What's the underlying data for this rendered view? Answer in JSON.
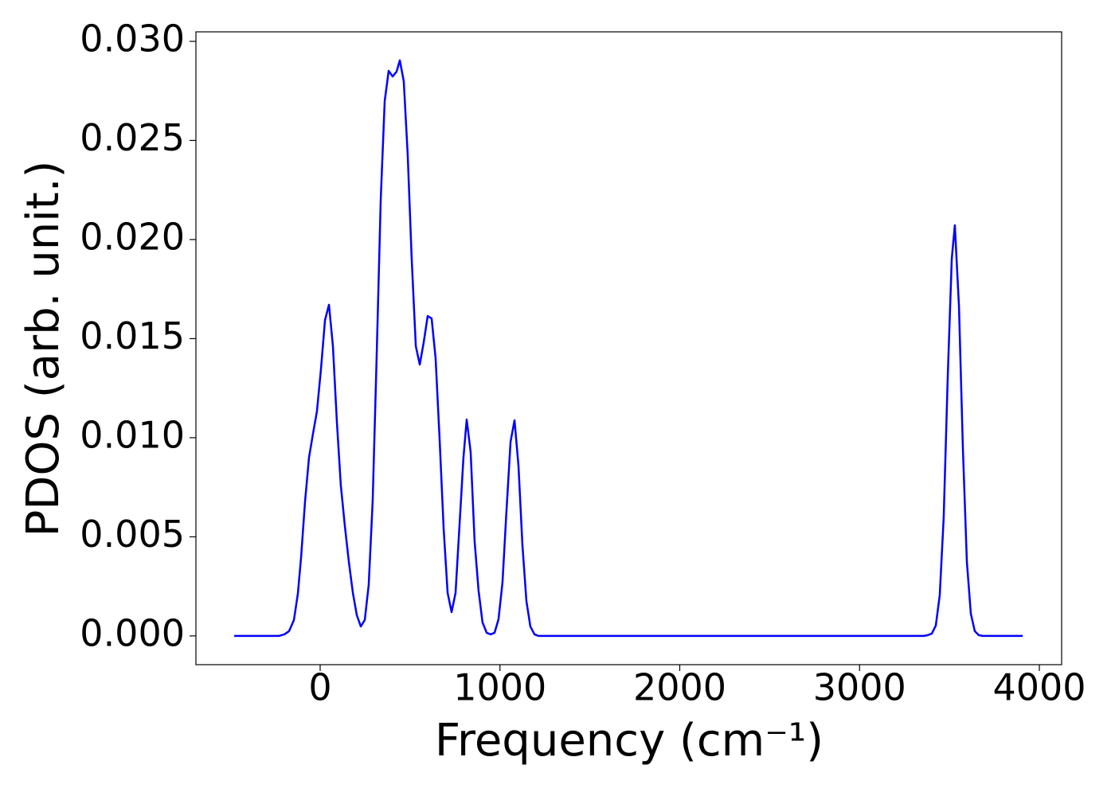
{
  "chart_data": {
    "type": "line",
    "x_label": "Frequency (cm⁻¹)",
    "y_label": "PDOS (arb. unit.)",
    "x": [
      -478,
      -230,
      -199,
      -173,
      -146,
      -124,
      -106,
      -84,
      -62,
      -40,
      -18,
      4,
      27,
      49,
      71,
      93,
      115,
      137,
      159,
      182,
      204,
      226,
      248,
      270,
      292,
      314,
      337,
      359,
      381,
      403,
      425,
      443,
      465,
      487,
      509,
      532,
      554,
      576,
      598,
      620,
      642,
      664,
      687,
      709,
      731,
      753,
      775,
      797,
      815,
      837,
      859,
      881,
      903,
      926,
      948,
      970,
      992,
      1014,
      1036,
      1059,
      1081,
      1103,
      1125,
      1147,
      1169,
      1192,
      1214,
      3358,
      3380,
      3402,
      3424,
      3446,
      3468,
      3491,
      3513,
      3530,
      3553,
      3575,
      3597,
      3619,
      3641,
      3663,
      3685,
      3907
    ],
    "series": [
      {
        "name": "PDOS",
        "color": "#0000ff",
        "values": [
          0,
          0,
          8e-05,
          0.00024,
          0.0008,
          0.00213,
          0.00398,
          0.00679,
          0.009,
          0.0102,
          0.01133,
          0.01341,
          0.01594,
          0.01671,
          0.01462,
          0.0108,
          0.00759,
          0.00558,
          0.00378,
          0.00217,
          0.00104,
          0.00048,
          0.0008,
          0.00257,
          0.00679,
          0.01402,
          0.02205,
          0.02699,
          0.02851,
          0.02823,
          0.02847,
          0.02904,
          0.02799,
          0.02426,
          0.01904,
          0.01462,
          0.01369,
          0.01482,
          0.01614,
          0.01602,
          0.01402,
          0.01,
          0.00538,
          0.00217,
          0.0012,
          0.00217,
          0.00558,
          0.009,
          0.01092,
          0.00928,
          0.00478,
          0.00229,
          0.00068,
          0.00016,
          8e-05,
          0.00016,
          0.00084,
          0.00269,
          0.00627,
          0.0098,
          0.01088,
          0.00859,
          0.00458,
          0.00177,
          0.00048,
          8e-05,
          0,
          0,
          4e-05,
          0.00012,
          0.00052,
          0.00205,
          0.00598,
          0.01321,
          0.01904,
          0.02072,
          0.01663,
          0.0094,
          0.00373,
          0.00112,
          0.00024,
          4e-05,
          0,
          0
        ]
      }
    ],
    "xlim": [
      -691,
      4124
    ],
    "ylim": [
      -0.00145,
      0.03048
    ],
    "xticks": [
      0,
      1000,
      2000,
      3000,
      4000
    ],
    "yticks": [
      {
        "value": 0,
        "label": "0.000"
      },
      {
        "value": 0.005,
        "label": "0.005"
      },
      {
        "value": 0.01,
        "label": "0.010"
      },
      {
        "value": 0.015,
        "label": "0.015"
      },
      {
        "value": 0.02,
        "label": "0.020"
      },
      {
        "value": 0.025,
        "label": "0.025"
      },
      {
        "value": 0.03,
        "label": "0.030"
      }
    ],
    "grid": false
  }
}
